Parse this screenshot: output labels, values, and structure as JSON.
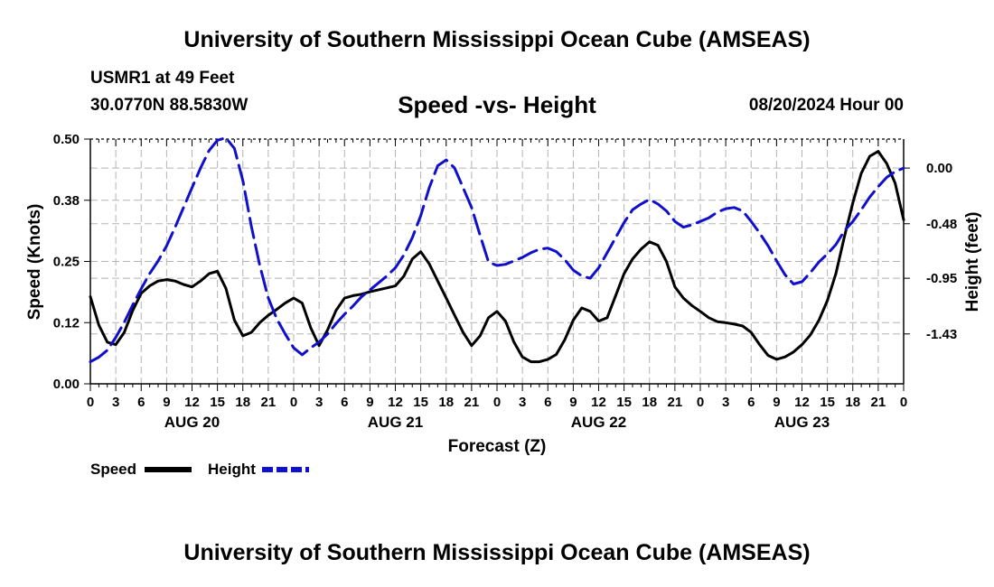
{
  "header": {
    "title": "University of Southern Mississippi Ocean Cube (AMSEAS)",
    "station": "USMR1 at 49 Feet",
    "coords": "30.0770N  88.5830W",
    "subtitle": "Speed -vs- Height",
    "datetime": "08/20/2024 Hour 00"
  },
  "footer": {
    "title": "University of Southern Mississippi Ocean Cube (AMSEAS)"
  },
  "colors": {
    "speed": "#000000",
    "height": "#1010cc",
    "grid": "#b4b4b4",
    "axis": "#000000"
  },
  "chart_data": {
    "type": "line",
    "xlabel": "Forecast (Z)",
    "ylabel_left": "Speed (Knots)",
    "ylabel_right": "Height (feet)",
    "xlim": [
      0,
      96
    ],
    "ylim_left": [
      0,
      0.5
    ],
    "ylim_right": [
      -1.86,
      0.25
    ],
    "yticks_left": [
      0.0,
      0.125,
      0.25,
      0.375,
      0.5
    ],
    "yticklabels_left": [
      "0.00",
      "0.12",
      "0.25",
      "0.38",
      "0.50"
    ],
    "yticks_right": [
      -1.43,
      -0.95,
      -0.48,
      0.0
    ],
    "yticklabels_right": [
      "-1.43",
      "-0.95",
      "-0.48",
      "0.00"
    ],
    "xticks": [
      0,
      3,
      6,
      9,
      12,
      15,
      18,
      21,
      24,
      27,
      30,
      33,
      36,
      39,
      42,
      45,
      48,
      51,
      54,
      57,
      60,
      63,
      66,
      69,
      72,
      75,
      78,
      81,
      84,
      87,
      90,
      93,
      96
    ],
    "xticklabels": [
      "0",
      "3",
      "6",
      "9",
      "12",
      "15",
      "18",
      "21",
      "0",
      "3",
      "6",
      "9",
      "12",
      "15",
      "18",
      "21",
      "0",
      "3",
      "6",
      "9",
      "12",
      "15",
      "18",
      "21",
      "0",
      "3",
      "6",
      "9",
      "12",
      "15",
      "18",
      "21",
      "0"
    ],
    "day_labels": [
      {
        "x": 12,
        "label": "AUG 20"
      },
      {
        "x": 36,
        "label": "AUG 21"
      },
      {
        "x": 60,
        "label": "AUG 22"
      },
      {
        "x": 84,
        "label": "AUG 23"
      }
    ],
    "grid": true,
    "legend_position": "bottom-left",
    "series": [
      {
        "name": "Speed",
        "axis": "left",
        "style": "solid",
        "x": [
          0,
          1,
          2,
          3,
          4,
          5,
          6,
          7,
          8,
          9,
          10,
          11,
          12,
          13,
          14,
          15,
          16,
          17,
          18,
          19,
          20,
          21,
          22,
          23,
          24,
          25,
          26,
          27,
          28,
          29,
          30,
          31,
          32,
          33,
          34,
          35,
          36,
          37,
          38,
          39,
          40,
          41,
          42,
          43,
          44,
          45,
          46,
          47,
          48,
          49,
          50,
          51,
          52,
          53,
          54,
          55,
          56,
          57,
          58,
          59,
          60,
          61,
          62,
          63,
          64,
          65,
          66,
          67,
          68,
          69,
          70,
          71,
          72,
          73,
          74,
          75,
          76,
          77,
          78,
          79,
          80,
          81,
          82,
          83,
          84,
          85,
          86,
          87,
          88,
          89,
          90,
          91,
          92,
          93,
          94,
          95,
          96
        ],
        "values": [
          0.178,
          0.12,
          0.085,
          0.08,
          0.105,
          0.15,
          0.185,
          0.2,
          0.21,
          0.213,
          0.21,
          0.203,
          0.198,
          0.21,
          0.225,
          0.23,
          0.195,
          0.13,
          0.098,
          0.105,
          0.125,
          0.14,
          0.152,
          0.165,
          0.175,
          0.165,
          0.115,
          0.078,
          0.11,
          0.15,
          0.175,
          0.18,
          0.183,
          0.188,
          0.192,
          0.196,
          0.2,
          0.22,
          0.255,
          0.27,
          0.245,
          0.21,
          0.175,
          0.14,
          0.105,
          0.078,
          0.098,
          0.135,
          0.148,
          0.128,
          0.085,
          0.055,
          0.045,
          0.045,
          0.05,
          0.06,
          0.09,
          0.13,
          0.155,
          0.148,
          0.128,
          0.135,
          0.18,
          0.225,
          0.255,
          0.275,
          0.29,
          0.283,
          0.25,
          0.198,
          0.175,
          0.16,
          0.148,
          0.135,
          0.127,
          0.125,
          0.122,
          0.118,
          0.105,
          0.08,
          0.058,
          0.05,
          0.055,
          0.065,
          0.08,
          0.1,
          0.13,
          0.17,
          0.225,
          0.3,
          0.37,
          0.43,
          0.465,
          0.475,
          0.45,
          0.41,
          0.335
        ]
      },
      {
        "name": "Height",
        "axis": "right",
        "style": "dashed",
        "x": [
          0,
          1,
          2,
          3,
          4,
          5,
          6,
          7,
          8,
          9,
          10,
          11,
          12,
          13,
          14,
          15,
          16,
          17,
          18,
          19,
          20,
          21,
          22,
          23,
          24,
          25,
          26,
          27,
          28,
          29,
          30,
          31,
          32,
          33,
          34,
          35,
          36,
          37,
          38,
          39,
          40,
          41,
          42,
          43,
          44,
          45,
          46,
          47,
          48,
          49,
          50,
          51,
          52,
          53,
          54,
          55,
          56,
          57,
          58,
          59,
          60,
          61,
          62,
          63,
          64,
          65,
          66,
          67,
          68,
          69,
          70,
          71,
          72,
          73,
          74,
          75,
          76,
          77,
          78,
          79,
          80,
          81,
          82,
          83,
          84,
          85,
          86,
          87,
          88,
          89,
          90,
          91,
          92,
          93,
          94,
          95,
          96
        ],
        "values": [
          -1.67,
          -1.63,
          -1.57,
          -1.46,
          -1.33,
          -1.18,
          -1.04,
          -0.91,
          -0.8,
          -0.67,
          -0.51,
          -0.34,
          -0.17,
          0.0,
          0.15,
          0.24,
          0.26,
          0.17,
          -0.11,
          -0.5,
          -0.84,
          -1.12,
          -1.3,
          -1.43,
          -1.55,
          -1.61,
          -1.55,
          -1.5,
          -1.43,
          -1.34,
          -1.26,
          -1.19,
          -1.11,
          -1.05,
          -0.99,
          -0.93,
          -0.86,
          -0.75,
          -0.6,
          -0.41,
          -0.17,
          0.02,
          0.07,
          0.0,
          -0.17,
          -0.34,
          -0.58,
          -0.81,
          -0.84,
          -0.83,
          -0.8,
          -0.77,
          -0.73,
          -0.7,
          -0.69,
          -0.72,
          -0.79,
          -0.88,
          -0.93,
          -0.95,
          -0.86,
          -0.73,
          -0.6,
          -0.47,
          -0.36,
          -0.31,
          -0.27,
          -0.31,
          -0.37,
          -0.46,
          -0.51,
          -0.49,
          -0.46,
          -0.43,
          -0.38,
          -0.35,
          -0.34,
          -0.37,
          -0.46,
          -0.56,
          -0.67,
          -0.8,
          -0.92,
          -1.0,
          -0.98,
          -0.9,
          -0.81,
          -0.74,
          -0.66,
          -0.54,
          -0.46,
          -0.36,
          -0.25,
          -0.16,
          -0.08,
          -0.03,
          0.0
        ]
      }
    ]
  }
}
